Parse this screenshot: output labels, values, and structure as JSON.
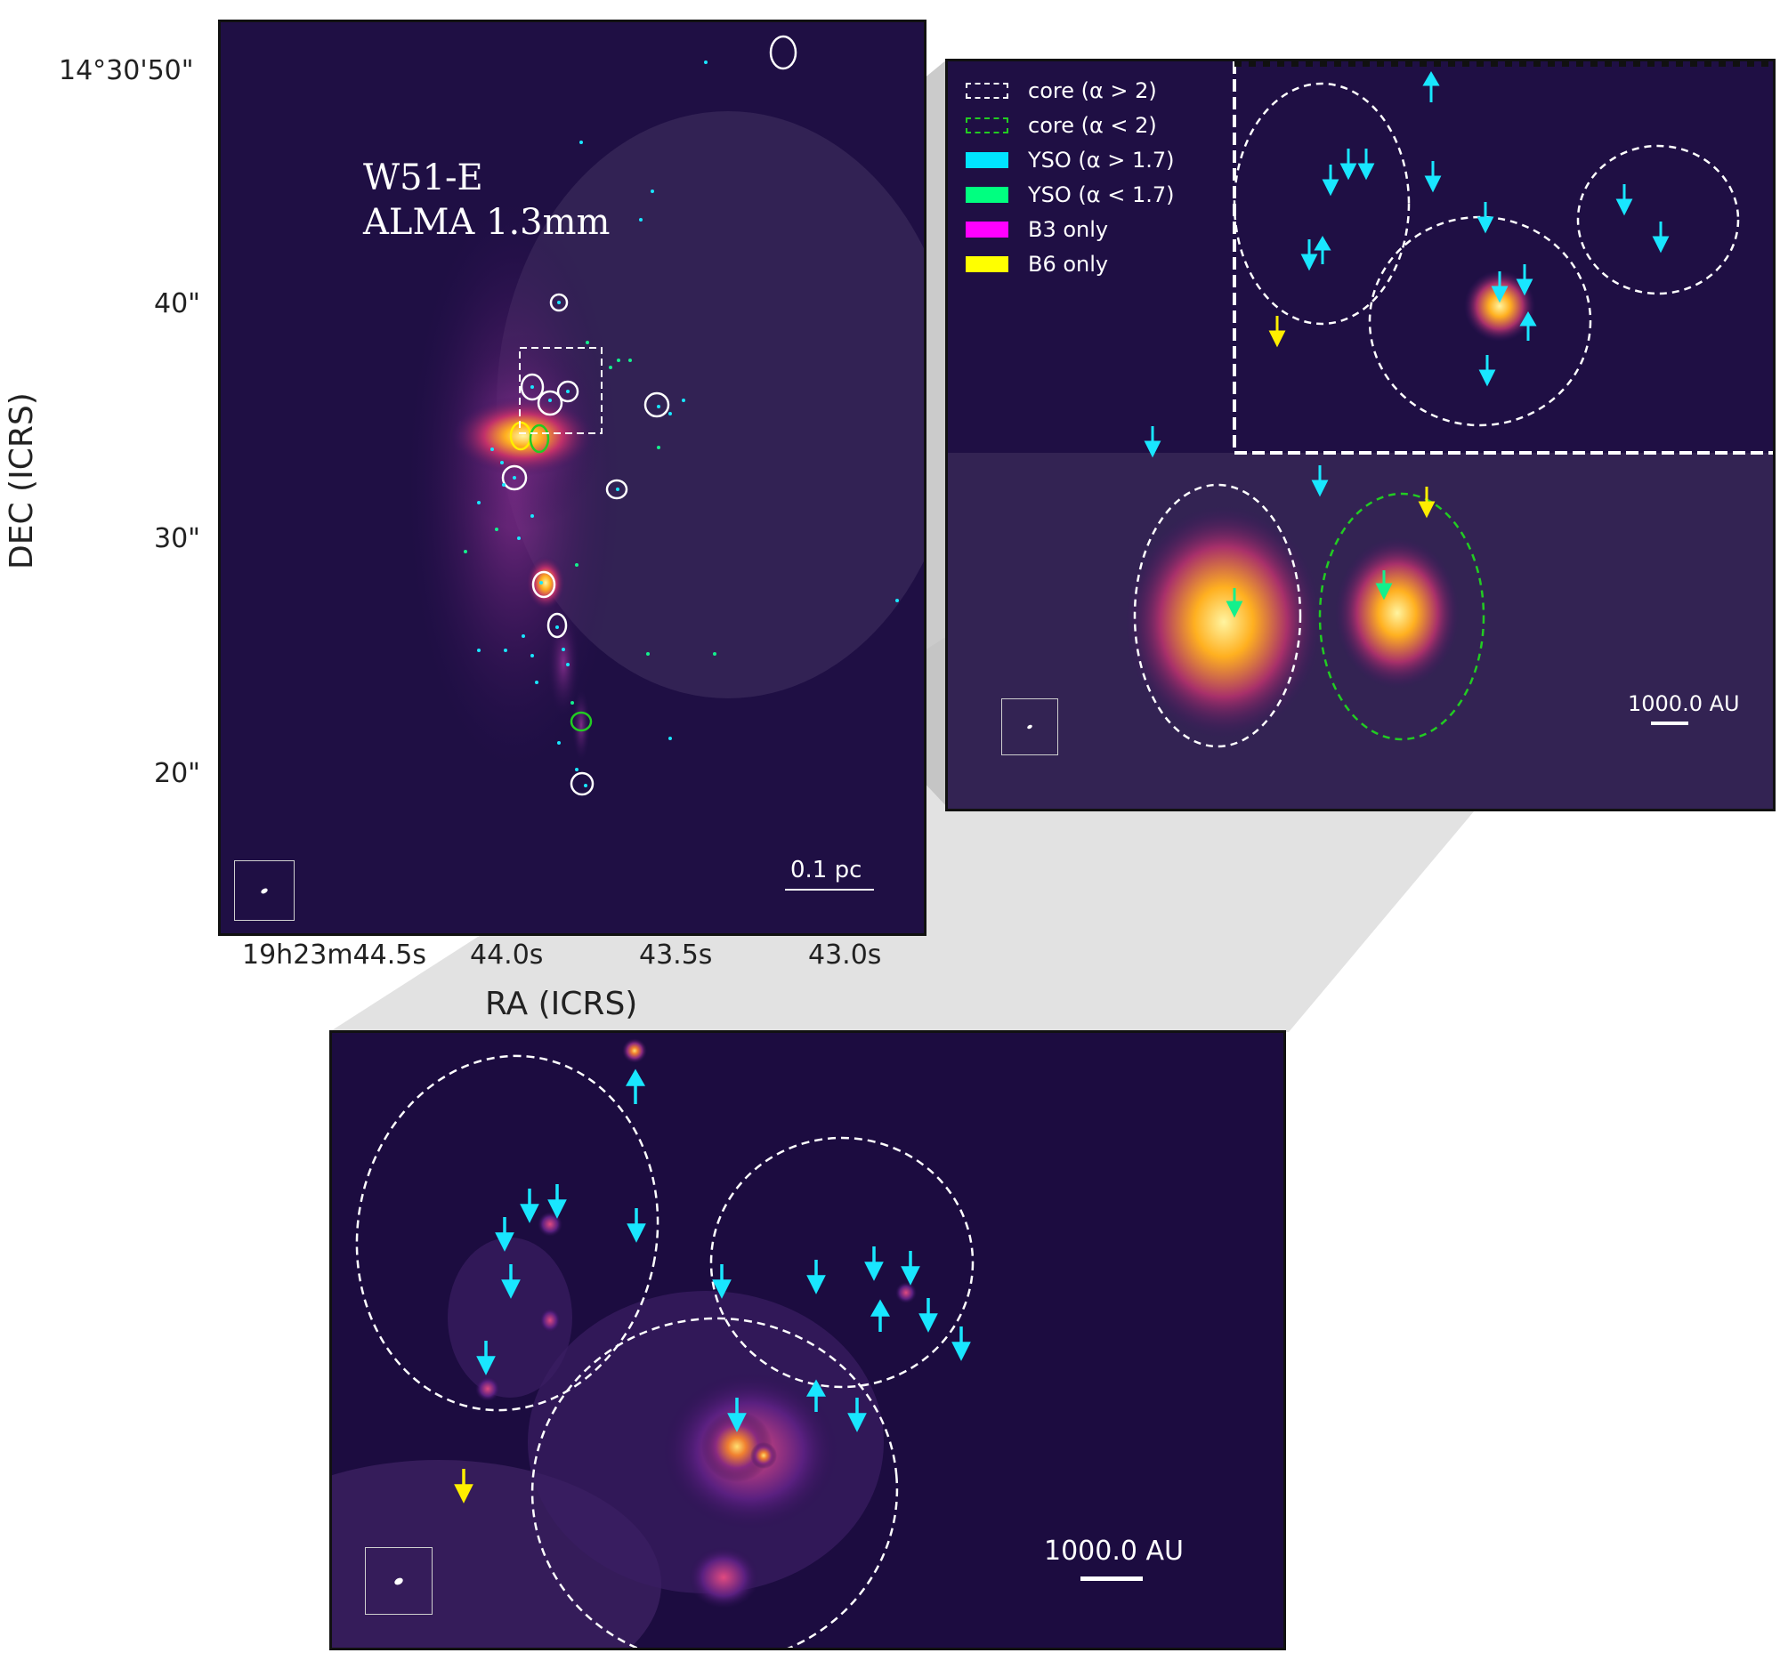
{
  "main_panel": {
    "title_line1": "W51-E",
    "title_line2": "ALMA 1.3mm",
    "scalebar": "0.1 pc",
    "xlabel": "RA (ICRS)",
    "ylabel": "DEC (ICRS)",
    "yticks": [
      "14°30'50\"",
      "40\"",
      "30\"",
      "20\""
    ],
    "xticks": [
      "19h23m44.5s",
      "44.0s",
      "43.5s",
      "43.0s"
    ]
  },
  "zoom_panel": {
    "scalebar": "1000.0 AU",
    "legend": [
      {
        "label": "core (α > 2)",
        "color": "#ffffff",
        "style": "dashed"
      },
      {
        "label": "core (α < 2)",
        "color": "#22cc22",
        "style": "dashed"
      },
      {
        "label": "YSO (α > 1.7)",
        "color": "#00e5ff",
        "style": "solid"
      },
      {
        "label": "YSO (α < 1.7)",
        "color": "#00ff80",
        "style": "solid"
      },
      {
        "label": "B3 only",
        "color": "#ff00ff",
        "style": "solid"
      },
      {
        "label": "B6 only",
        "color": "#ffff00",
        "style": "solid"
      }
    ]
  },
  "bottom_panel": {
    "scalebar": "1000.0 AU"
  },
  "colors": {
    "cyan_marker": "#19e6ff",
    "green_marker": "#14f08c",
    "yellow_marker": "#ffee00"
  }
}
